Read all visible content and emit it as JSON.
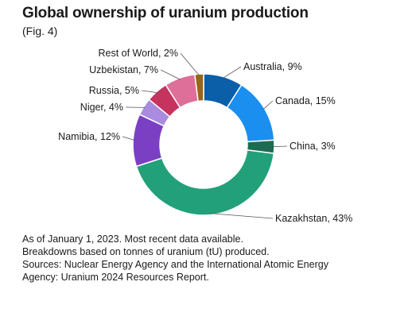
{
  "title": "Global ownership of uranium production",
  "subtitle": "(Fig. 4)",
  "notes": [
    "As of January 1, 2023. Most recent data available.",
    "Breakdowns based on tonnes of uranium (tU) produced.",
    "Sources: Nuclear Energy Agency and the International Atomic Energy",
    "Agency: Uranium 2024 Resources Report."
  ],
  "chart_data": {
    "type": "pie",
    "style": "donut",
    "start": "top",
    "direction": "clockwise",
    "slices": [
      {
        "label": "Australia, 9%",
        "name": "Australia",
        "value": 9,
        "color": "#0a5fa8"
      },
      {
        "label": "Canada, 15%",
        "name": "Canada",
        "value": 15,
        "color": "#1a8ff0"
      },
      {
        "label": "China, 3%",
        "name": "China",
        "value": 3,
        "color": "#1d6b50"
      },
      {
        "label": "Kazakhstan, 43%",
        "name": "Kazakhstan",
        "value": 43,
        "color": "#22a07a"
      },
      {
        "label": "Namibia, 12%",
        "name": "Namibia",
        "value": 12,
        "color": "#7b3fc4"
      },
      {
        "label": "Niger, 4%",
        "name": "Niger",
        "value": 4,
        "color": "#a98be0"
      },
      {
        "label": "Russia, 5%",
        "name": "Russia",
        "value": 5,
        "color": "#c4345f"
      },
      {
        "label": "Uzbekistan, 7%",
        "name": "Uzbekistan",
        "value": 7,
        "color": "#de6f99"
      },
      {
        "label": "Rest of World, 2%",
        "name": "Rest of World",
        "value": 2,
        "color": "#9a6519"
      }
    ]
  }
}
